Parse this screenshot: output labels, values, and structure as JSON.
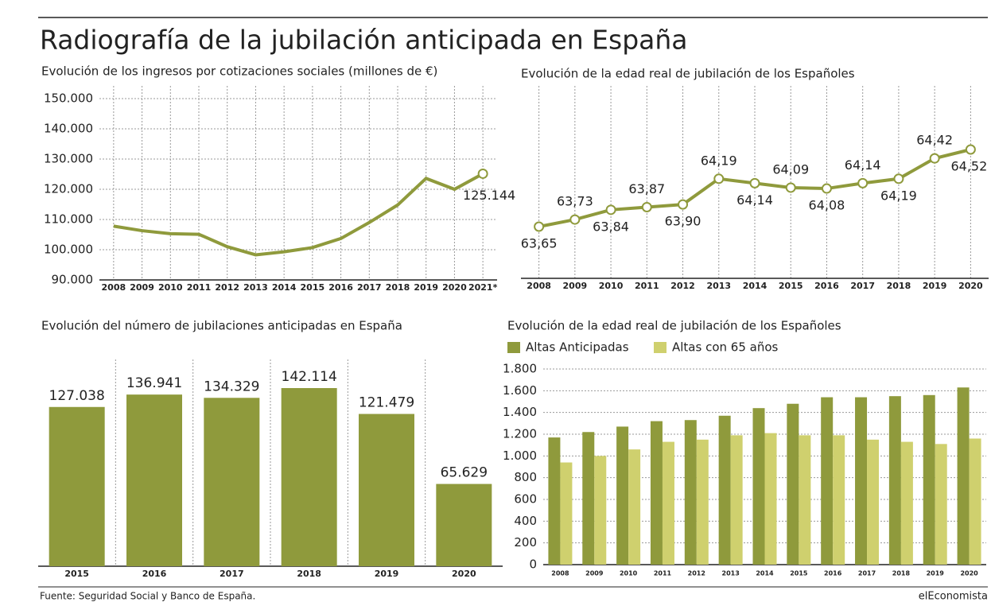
{
  "title": "Radiografía de la jubilación anticipada en España",
  "source": "Fuente: Seguridad Social y Banco de España.",
  "brand": "elEconomista",
  "chart_data": [
    {
      "type": "line",
      "title": "Evolución de los ingresos por cotizaciones sociales (millones de €)",
      "categories": [
        "2008",
        "2009",
        "2010",
        "2011",
        "2012",
        "2013",
        "2014",
        "2015",
        "2016",
        "2017",
        "2018",
        "2019",
        "2020",
        "2021*"
      ],
      "values": [
        107800,
        106300,
        105300,
        105100,
        101000,
        98300,
        99300,
        100700,
        103700,
        109000,
        114800,
        123600,
        120000,
        125144
      ],
      "value_labels": [
        null,
        null,
        null,
        null,
        null,
        null,
        null,
        null,
        null,
        null,
        null,
        null,
        null,
        "125.144"
      ],
      "color": "#8f9a3c",
      "ylim": [
        90000,
        150000
      ],
      "yticks": [
        {
          "value": 90000,
          "label": "90.000"
        },
        {
          "value": 100000,
          "label": "100.000"
        },
        {
          "value": 110000,
          "label": "110.000"
        },
        {
          "value": 120000,
          "label": "120.000"
        },
        {
          "value": 130000,
          "label": "130.000"
        },
        {
          "value": 140000,
          "label": "140.000"
        },
        {
          "value": 150000,
          "label": "150.000"
        }
      ],
      "grid": true
    },
    {
      "type": "line",
      "title": "Evolución de la edad real de jubilación de los Españoles",
      "categories": [
        "2008",
        "2009",
        "2010",
        "2011",
        "2012",
        "2013",
        "2014",
        "2015",
        "2016",
        "2017",
        "2018",
        "2019",
        "2020"
      ],
      "values": [
        63.65,
        63.73,
        63.84,
        63.87,
        63.9,
        64.19,
        64.14,
        64.09,
        64.08,
        64.14,
        64.19,
        64.42,
        64.52
      ],
      "value_labels": [
        "63,65",
        "63,73",
        "63,84",
        "63,87",
        "63,90",
        "64,19",
        "64,14",
        "64,09",
        "64,08",
        "64,14",
        "64,19",
        "64,42",
        "64,52"
      ],
      "color": "#8f9a3c",
      "grid": true
    },
    {
      "type": "bar",
      "title": "Evolución del número de jubilaciones anticipadas en España",
      "categories": [
        "2015",
        "2016",
        "2017",
        "2018",
        "2019",
        "2020"
      ],
      "values": [
        127038,
        136941,
        134329,
        142114,
        121479,
        65629
      ],
      "value_labels": [
        "127.038",
        "136.941",
        "134.329",
        "142.114",
        "121.479",
        "65.629"
      ],
      "color": "#8f9a3c"
    },
    {
      "type": "bar",
      "title": "Evolución de la edad real de jubilación de los Españoles",
      "categories": [
        "2008",
        "2009",
        "2010",
        "2011",
        "2012",
        "2013",
        "2014",
        "2015",
        "2016",
        "2017",
        "2018",
        "2019",
        "2020"
      ],
      "series": [
        {
          "name": "Altas Anticipadas",
          "color": "#8f9a3c",
          "values": [
            1170,
            1220,
            1270,
            1320,
            1330,
            1370,
            1440,
            1480,
            1540,
            1540,
            1550,
            1560,
            1630
          ]
        },
        {
          "name": "Altas con 65 años",
          "color": "#cfd06e",
          "values": [
            940,
            1000,
            1060,
            1130,
            1150,
            1190,
            1210,
            1190,
            1190,
            1150,
            1130,
            1110,
            1160
          ]
        }
      ],
      "ylim": [
        0,
        1800
      ],
      "yticks": [
        0,
        200,
        400,
        600,
        800,
        {
          "value": 1000,
          "label": "1.000"
        },
        {
          "value": 1200,
          "label": "1.200"
        },
        {
          "value": 1400,
          "label": "1.400"
        },
        {
          "value": 1600,
          "label": "1.600"
        },
        {
          "value": 1800,
          "label": "1.800"
        }
      ],
      "grid": true
    }
  ]
}
